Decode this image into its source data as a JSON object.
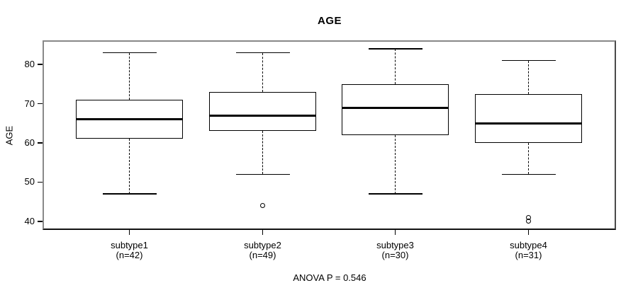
{
  "chart_data": {
    "type": "boxplot",
    "title": "AGE",
    "ylabel": "AGE",
    "annotation": "ANOVA P = 0.546",
    "y_ticks": [
      40,
      50,
      60,
      70,
      80
    ],
    "ylim": [
      37.8,
      85.8
    ],
    "grid": false,
    "legend": "none",
    "categories": [
      "subtype1",
      "subtype2",
      "subtype3",
      "subtype4"
    ],
    "series": [
      {
        "label": "subtype1",
        "sublabel": "(n=42)",
        "n": 42,
        "whisker_low": 47,
        "q1": 61,
        "median": 66,
        "q3": 71,
        "whisker_high": 83,
        "outliers": []
      },
      {
        "label": "subtype2",
        "sublabel": "(n=49)",
        "n": 49,
        "whisker_low": 52,
        "q1": 63,
        "median": 67,
        "q3": 73,
        "whisker_high": 83,
        "outliers": [
          44
        ]
      },
      {
        "label": "subtype3",
        "sublabel": "(n=30)",
        "n": 30,
        "whisker_low": 47,
        "q1": 62,
        "median": 69,
        "q3": 75,
        "whisker_high": 84,
        "outliers": []
      },
      {
        "label": "subtype4",
        "sublabel": "(n=31)",
        "n": 31,
        "whisker_low": 52,
        "q1": 60,
        "median": 65,
        "q3": 72.5,
        "whisker_high": 81,
        "outliers": [
          41,
          40
        ]
      }
    ],
    "colors": {
      "line": "#000000",
      "box_fill": "#ffffff",
      "frame_gray": "#888888",
      "background": "#ffffff"
    }
  }
}
